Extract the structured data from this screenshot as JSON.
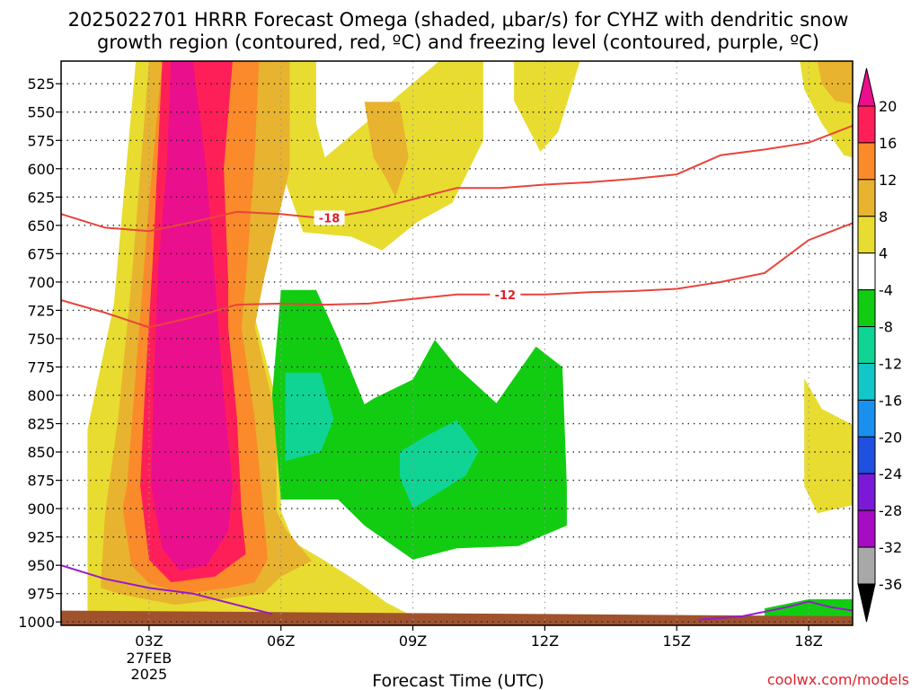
{
  "header": {
    "title_line1": "2025022701 HRRR Forecast Omega (shaded, μbar/s) for CYHZ with dendritic snow",
    "title_line2": "growth region (contoured, red, ºC) and freezing level (contoured, purple, ºC)"
  },
  "footer": {
    "credit": "coolwx.com/models"
  },
  "colors": {
    "dendritic": "#e8443c",
    "freezing": "#9a1acb",
    "ground": "#a0522d",
    "credit": "#e0202a"
  },
  "chart_data": {
    "type": "heatmap",
    "x_axis": {
      "label": "Forecast Time (UTC)",
      "range_hours": [
        1,
        19
      ],
      "ticks": [
        {
          "hour": 3,
          "label": "03Z",
          "sub": [
            "27FEB",
            "2025"
          ]
        },
        {
          "hour": 6,
          "label": "06Z"
        },
        {
          "hour": 9,
          "label": "09Z"
        },
        {
          "hour": 12,
          "label": "12Z"
        },
        {
          "hour": 15,
          "label": "15Z"
        },
        {
          "hour": 18,
          "label": "18Z"
        }
      ]
    },
    "y_axis": {
      "unit": "hPa",
      "range": [
        505,
        1003
      ],
      "ticks": [
        525,
        550,
        575,
        600,
        625,
        650,
        675,
        700,
        725,
        750,
        775,
        800,
        825,
        850,
        875,
        900,
        925,
        950,
        975,
        1000
      ]
    },
    "colorbar": {
      "labels": [
        "20",
        "16",
        "12",
        "8",
        "4",
        "-4",
        "-8",
        "-12",
        "-16",
        "-20",
        "-24",
        "-28",
        "-32",
        "-36"
      ],
      "colors": [
        "#ff1f58",
        "#fa8a2a",
        "#e8b32e",
        "#e8dc30",
        "#ffffff",
        "#12cc12",
        "#10d494",
        "#13c6c8",
        "#1a90ee",
        "#2050e0",
        "#7a1ad8",
        "#a80bc4",
        "#a8a8a8"
      ],
      "top_arrow_color": "#ea0f8c",
      "bottom_arrow_color": "#000000"
    },
    "omega_regions": [
      {
        "level": "4 to 8",
        "color": "#e8dc30",
        "points": [
          [
            1.6,
            996
          ],
          [
            1.6,
            830
          ],
          [
            2.2,
            720
          ],
          [
            2.7,
            505
          ],
          [
            6.8,
            505
          ],
          [
            6.8,
            560
          ],
          [
            7.0,
            590
          ],
          [
            9.6,
            505
          ],
          [
            10.6,
            505
          ],
          [
            10.6,
            575
          ],
          [
            9.9,
            630
          ],
          [
            9.1,
            647
          ],
          [
            8.3,
            672
          ],
          [
            7.6,
            660
          ],
          [
            6.5,
            656
          ],
          [
            6.0,
            600
          ],
          [
            5.4,
            730
          ],
          [
            6.0,
            820
          ],
          [
            6.0,
            902
          ],
          [
            6.3,
            930
          ],
          [
            7.0,
            946
          ],
          [
            7.8,
            966
          ],
          [
            8.4,
            983
          ],
          [
            9.0,
            995
          ]
        ]
      },
      {
        "level": "4 to 8",
        "color": "#e8dc30",
        "points": [
          [
            11.3,
            505
          ],
          [
            12.8,
            505
          ],
          [
            12.3,
            568
          ],
          [
            11.9,
            585
          ],
          [
            11.3,
            540
          ]
        ]
      },
      {
        "level": "4 to 8",
        "color": "#e8dc30",
        "points": [
          [
            17.8,
            505
          ],
          [
            19,
            505
          ],
          [
            19,
            590
          ],
          [
            18.8,
            588
          ],
          [
            18.3,
            560
          ],
          [
            17.9,
            530
          ]
        ]
      },
      {
        "level": "4 to 8",
        "color": "#e8dc30",
        "points": [
          [
            17.9,
            785
          ],
          [
            18.3,
            812
          ],
          [
            19,
            826
          ],
          [
            19,
            897
          ],
          [
            18.2,
            904
          ],
          [
            17.9,
            880
          ]
        ]
      },
      {
        "level": "8 to 12",
        "color": "#e8b32e",
        "points": [
          [
            1.9,
            970
          ],
          [
            2.0,
            905
          ],
          [
            2.3,
            820
          ],
          [
            2.6,
            700
          ],
          [
            3.0,
            505
          ],
          [
            6.2,
            505
          ],
          [
            6.2,
            600
          ],
          [
            5.6,
            700
          ],
          [
            5.4,
            740
          ],
          [
            5.9,
            820
          ],
          [
            5.9,
            902
          ],
          [
            6.1,
            918
          ],
          [
            6.4,
            932
          ],
          [
            6.7,
            946
          ],
          [
            6.0,
            960
          ],
          [
            5.6,
            975
          ],
          [
            4.6,
            980
          ],
          [
            3.6,
            985
          ],
          [
            2.4,
            976
          ]
        ]
      },
      {
        "level": "8 to 12",
        "color": "#e8b32e",
        "points": [
          [
            7.9,
            541
          ],
          [
            8.7,
            541
          ],
          [
            8.9,
            590
          ],
          [
            8.6,
            625
          ],
          [
            8.4,
            609
          ],
          [
            8.1,
            590
          ]
        ]
      },
      {
        "level": "8 to 12",
        "color": "#e8b32e",
        "points": [
          [
            18.2,
            505
          ],
          [
            19,
            505
          ],
          [
            19,
            543
          ],
          [
            18.6,
            540
          ],
          [
            18.3,
            525
          ]
        ]
      },
      {
        "level": "12 to 16",
        "color": "#fa8a2a",
        "points": [
          [
            2.4,
            900
          ],
          [
            2.5,
            880
          ],
          [
            2.7,
            780
          ],
          [
            3.0,
            630
          ],
          [
            3.3,
            505
          ],
          [
            5.5,
            505
          ],
          [
            5.4,
            590
          ],
          [
            5.2,
            700
          ],
          [
            5.1,
            740
          ],
          [
            5.4,
            820
          ],
          [
            5.6,
            902
          ],
          [
            5.7,
            945
          ],
          [
            5.4,
            965
          ],
          [
            4.8,
            970
          ],
          [
            3.8,
            975
          ],
          [
            3.0,
            966
          ],
          [
            2.6,
            950
          ]
        ]
      },
      {
        "level": "16 to 20",
        "color": "#ff1f58",
        "points": [
          [
            2.8,
            880
          ],
          [
            2.9,
            800
          ],
          [
            3.1,
            670
          ],
          [
            3.3,
            505
          ],
          [
            4.9,
            505
          ],
          [
            4.7,
            600
          ],
          [
            4.8,
            700
          ],
          [
            4.8,
            740
          ],
          [
            5.0,
            820
          ],
          [
            5.1,
            902
          ],
          [
            5.2,
            940
          ],
          [
            4.5,
            960
          ],
          [
            3.5,
            965
          ],
          [
            3.0,
            945
          ]
        ]
      },
      {
        "level": "20+",
        "color": "#ea0f8c",
        "points": [
          [
            3.05,
            880
          ],
          [
            3.1,
            800
          ],
          [
            3.2,
            690
          ],
          [
            3.4,
            600
          ],
          [
            3.5,
            505
          ],
          [
            4.0,
            505
          ],
          [
            4.3,
            600
          ],
          [
            4.5,
            700
          ],
          [
            4.7,
            800
          ],
          [
            4.9,
            880
          ],
          [
            4.8,
            920
          ],
          [
            4.3,
            950
          ],
          [
            3.7,
            955
          ],
          [
            3.3,
            935
          ]
        ]
      },
      {
        "level": "-4 to -8",
        "color": "#12cc12",
        "points": [
          [
            6.0,
            707
          ],
          [
            6.8,
            707
          ],
          [
            7.3,
            750
          ],
          [
            7.9,
            808
          ],
          [
            8.1,
            803
          ],
          [
            9.0,
            786
          ],
          [
            9.5,
            751
          ],
          [
            10.0,
            775
          ],
          [
            10.9,
            807
          ],
          [
            11.8,
            757
          ],
          [
            12.4,
            775
          ],
          [
            12.5,
            880
          ],
          [
            12.5,
            915
          ],
          [
            11.4,
            933
          ],
          [
            10.0,
            935
          ],
          [
            9.0,
            945
          ],
          [
            7.9,
            915
          ],
          [
            7.3,
            892
          ],
          [
            6.0,
            892
          ],
          [
            5.8,
            800
          ]
        ]
      },
      {
        "level": "-4 to -8",
        "color": "#12cc12",
        "points": [
          [
            17.0,
            988
          ],
          [
            18.0,
            980
          ],
          [
            19,
            980
          ],
          [
            19,
            996
          ],
          [
            17.0,
            996
          ]
        ]
      },
      {
        "level": "-8 to -12",
        "color": "#10d494",
        "points": [
          [
            6.1,
            780
          ],
          [
            6.9,
            780
          ],
          [
            7.2,
            821
          ],
          [
            6.9,
            850
          ],
          [
            6.1,
            858
          ]
        ]
      },
      {
        "level": "-8 to -12",
        "color": "#10d494",
        "points": [
          [
            8.7,
            850
          ],
          [
            9.3,
            836
          ],
          [
            10.0,
            822
          ],
          [
            10.5,
            849
          ],
          [
            10.2,
            871
          ],
          [
            9.0,
            900
          ],
          [
            8.7,
            872
          ]
        ]
      }
    ],
    "dendritic_contours": [
      {
        "label": "-18",
        "label_at_hour": 7.1,
        "points": [
          [
            1,
            640
          ],
          [
            2,
            652
          ],
          [
            3,
            655
          ],
          [
            4,
            647
          ],
          [
            5,
            638
          ],
          [
            6,
            640
          ],
          [
            7,
            644
          ],
          [
            8,
            637
          ],
          [
            9,
            627
          ],
          [
            10,
            617
          ],
          [
            11,
            617
          ],
          [
            12,
            614
          ],
          [
            13,
            612
          ],
          [
            14,
            609
          ],
          [
            15,
            605
          ],
          [
            16,
            588
          ],
          [
            17,
            583
          ],
          [
            18,
            577
          ],
          [
            19,
            562
          ]
        ]
      },
      {
        "label": "-12",
        "label_at_hour": 11.1,
        "points": [
          [
            1,
            716
          ],
          [
            2,
            727
          ],
          [
            3,
            740
          ],
          [
            4,
            731
          ],
          [
            5,
            720
          ],
          [
            6,
            719
          ],
          [
            7,
            720
          ],
          [
            8,
            719
          ],
          [
            9,
            715
          ],
          [
            10,
            711
          ],
          [
            11,
            711
          ],
          [
            12,
            711
          ],
          [
            13,
            709
          ],
          [
            14,
            708
          ],
          [
            15,
            706
          ],
          [
            16,
            700
          ],
          [
            17,
            692
          ],
          [
            18,
            663
          ],
          [
            19,
            648
          ]
        ]
      }
    ],
    "freezing_contours": [
      {
        "points": [
          [
            1,
            950
          ],
          [
            2,
            962
          ],
          [
            3,
            970
          ],
          [
            4,
            975
          ],
          [
            5,
            985
          ],
          [
            5.8,
            993
          ]
        ]
      },
      {
        "points": [
          [
            15.5,
            998
          ],
          [
            16.5,
            995
          ],
          [
            17.5,
            987
          ],
          [
            18,
            982
          ],
          [
            18.5,
            987
          ],
          [
            19,
            990
          ]
        ]
      }
    ],
    "ground": {
      "top_left": 990,
      "top_right": 995
    }
  }
}
